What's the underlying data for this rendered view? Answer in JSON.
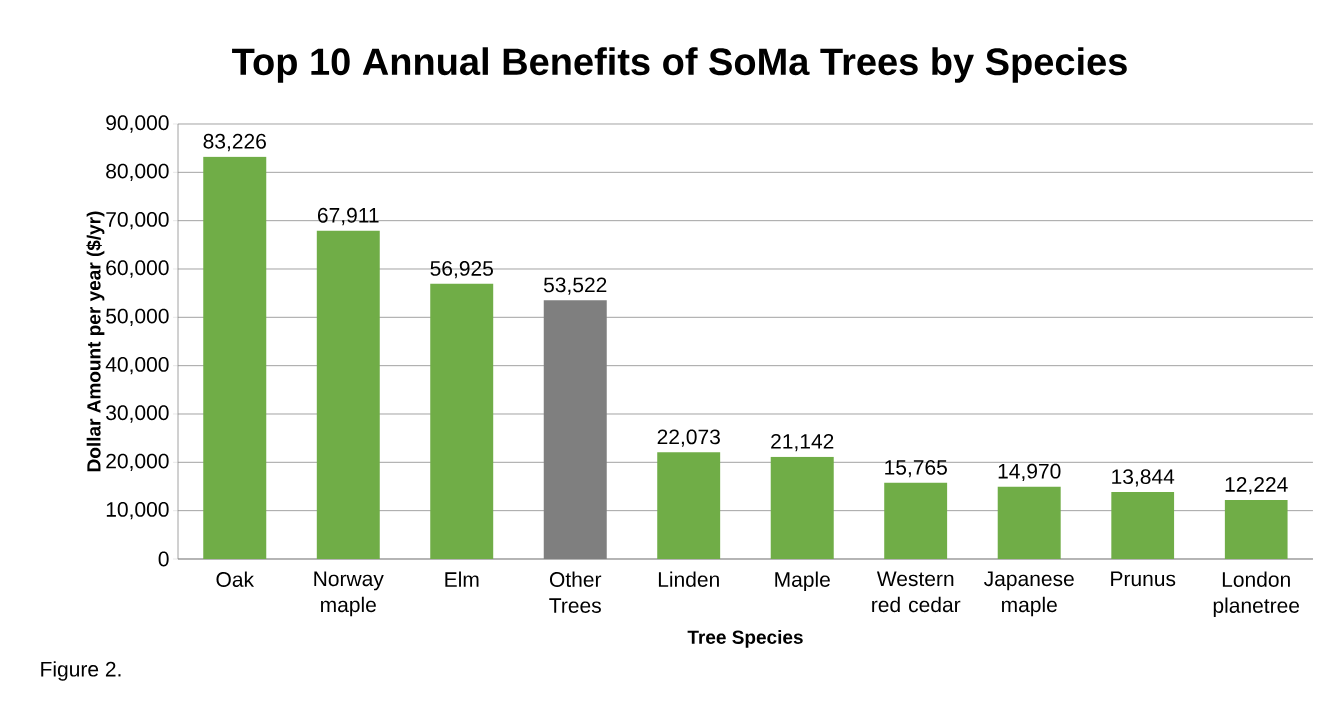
{
  "chart_data": {
    "type": "bar",
    "title": "Top 10 Annual Benefits of SoMa Trees by Species",
    "xlabel": "Tree Species",
    "ylabel": "Dollar Amount per year ($/yr)",
    "categories": [
      "Oak",
      "Norway maple",
      "Elm",
      "Other Trees",
      "Linden",
      "Maple",
      "Western red cedar",
      "Japanese maple",
      "Prunus",
      "London planetree"
    ],
    "values": [
      83226,
      67911,
      56925,
      53522,
      22073,
      21142,
      15765,
      14970,
      13844,
      12224
    ],
    "value_labels": [
      "83,226",
      "67,911",
      "56,925",
      "53,522",
      "22,073",
      "21,142",
      "15,765",
      "14,970",
      "13,844",
      "12,224"
    ],
    "colors": [
      "#70ad47",
      "#70ad47",
      "#70ad47",
      "#7f7f7f",
      "#70ad47",
      "#70ad47",
      "#70ad47",
      "#70ad47",
      "#70ad47",
      "#70ad47"
    ],
    "ylim": [
      0,
      90000
    ],
    "yticks": [
      {
        "value": 0,
        "label": "0"
      },
      {
        "value": 10000,
        "label": "10,000"
      },
      {
        "value": 20000,
        "label": "20,000"
      },
      {
        "value": 30000,
        "label": "30,000"
      },
      {
        "value": 40000,
        "label": "40,000"
      },
      {
        "value": 50000,
        "label": "50,000"
      },
      {
        "value": 60000,
        "label": "60,000"
      },
      {
        "value": 70000,
        "label": "70,000"
      },
      {
        "value": 80000,
        "label": "80,000"
      },
      {
        "value": 90000,
        "label": "90,000"
      }
    ],
    "grid": "y",
    "annotations": [
      "Figure 2."
    ]
  }
}
